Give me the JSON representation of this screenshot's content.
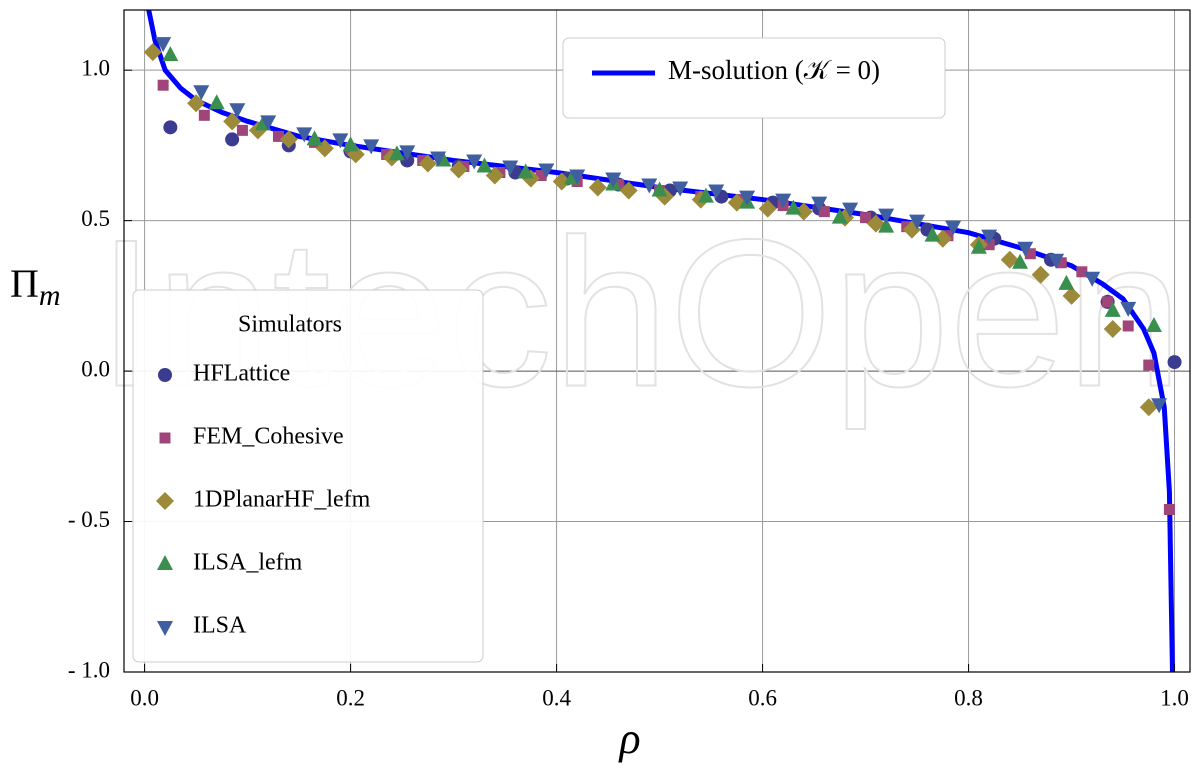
{
  "chart_data": {
    "type": "scatter",
    "watermark": "IntechOpen",
    "x_label": "ρ",
    "y_label": {
      "symbol": "Π",
      "subscript": "m"
    },
    "legend_title": "Simulators",
    "xlim": [
      -0.02,
      1.015
    ],
    "ylim": [
      -1.0,
      1.2
    ],
    "xticks": [
      {
        "value": 0,
        "label": "0.0"
      },
      0.2,
      0.4,
      0.6,
      0.8,
      {
        "value": 1,
        "label": "1.0"
      }
    ],
    "yticks": [
      {
        "value": -1,
        "label": "- 1.0"
      },
      {
        "value": -0.5,
        "label": "- 0.5"
      },
      {
        "value": 0,
        "label": "0.0"
      },
      0.5,
      {
        "value": 1,
        "label": "1.0"
      }
    ],
    "grid": true,
    "series": [
      {
        "name": "M-solution (𝒦 = 0)",
        "style": "line",
        "color": "#0000ff",
        "x": [
          0.004,
          0.01,
          0.02,
          0.035,
          0.05,
          0.075,
          0.1,
          0.15,
          0.2,
          0.3,
          0.4,
          0.5,
          0.6,
          0.7,
          0.8,
          0.85,
          0.9,
          0.93,
          0.95,
          0.97,
          0.98,
          0.99,
          0.995,
          0.998
        ],
        "values": [
          1.2,
          1.1,
          1.0,
          0.94,
          0.9,
          0.86,
          0.83,
          0.78,
          0.75,
          0.7,
          0.66,
          0.61,
          0.57,
          0.52,
          0.46,
          0.41,
          0.35,
          0.29,
          0.24,
          0.14,
          0.06,
          -0.12,
          -0.4,
          -1.0
        ]
      },
      {
        "name": "HFLattice",
        "style": "circle",
        "color": "#3b3b8f",
        "x": [
          0.025,
          0.085,
          0.14,
          0.2,
          0.255,
          0.305,
          0.36,
          0.41,
          0.46,
          0.51,
          0.56,
          0.61,
          0.655,
          0.705,
          0.76,
          0.825,
          0.88,
          0.935,
          1.0
        ],
        "values": [
          0.81,
          0.77,
          0.75,
          0.73,
          0.7,
          0.68,
          0.66,
          0.64,
          0.62,
          0.6,
          0.58,
          0.56,
          0.54,
          0.51,
          0.47,
          0.44,
          0.37,
          0.23,
          0.03
        ]
      },
      {
        "name": "FEM_Cohesive",
        "style": "square",
        "color": "#a0457a",
        "x": [
          0.018,
          0.058,
          0.095,
          0.13,
          0.165,
          0.2,
          0.235,
          0.27,
          0.31,
          0.345,
          0.385,
          0.42,
          0.46,
          0.5,
          0.54,
          0.58,
          0.62,
          0.66,
          0.7,
          0.74,
          0.78,
          0.82,
          0.86,
          0.89,
          0.91,
          0.935,
          0.955,
          0.975,
          0.995
        ],
        "values": [
          0.95,
          0.85,
          0.8,
          0.78,
          0.76,
          0.74,
          0.72,
          0.7,
          0.68,
          0.66,
          0.65,
          0.63,
          0.62,
          0.6,
          0.58,
          0.57,
          0.55,
          0.53,
          0.51,
          0.48,
          0.45,
          0.42,
          0.39,
          0.36,
          0.33,
          0.23,
          0.15,
          0.02,
          -0.46
        ]
      },
      {
        "name": "1DPlanarHF_lefm",
        "style": "diamond",
        "color": "#9c8a3a",
        "x": [
          0.008,
          0.05,
          0.085,
          0.11,
          0.14,
          0.175,
          0.205,
          0.24,
          0.275,
          0.305,
          0.34,
          0.375,
          0.405,
          0.44,
          0.47,
          0.505,
          0.54,
          0.575,
          0.605,
          0.64,
          0.68,
          0.71,
          0.745,
          0.775,
          0.81,
          0.84,
          0.87,
          0.9,
          0.94,
          0.975
        ],
        "values": [
          1.06,
          0.89,
          0.83,
          0.8,
          0.77,
          0.74,
          0.72,
          0.71,
          0.69,
          0.67,
          0.65,
          0.64,
          0.63,
          0.61,
          0.6,
          0.58,
          0.57,
          0.56,
          0.54,
          0.53,
          0.51,
          0.49,
          0.47,
          0.44,
          0.42,
          0.37,
          0.32,
          0.25,
          0.14,
          -0.12
        ]
      },
      {
        "name": "ILSA_lefm",
        "style": "triangle-up",
        "color": "#3a8f4e",
        "x": [
          0.025,
          0.07,
          0.115,
          0.165,
          0.2,
          0.245,
          0.29,
          0.33,
          0.37,
          0.415,
          0.455,
          0.5,
          0.545,
          0.585,
          0.63,
          0.675,
          0.72,
          0.765,
          0.81,
          0.85,
          0.895,
          0.94,
          0.98
        ],
        "values": [
          1.05,
          0.89,
          0.82,
          0.77,
          0.75,
          0.72,
          0.7,
          0.68,
          0.66,
          0.64,
          0.62,
          0.6,
          0.58,
          0.56,
          0.54,
          0.51,
          0.48,
          0.45,
          0.41,
          0.36,
          0.29,
          0.2,
          0.15
        ]
      },
      {
        "name": "ILSA",
        "style": "triangle-down",
        "color": "#3f5fa0",
        "x": [
          0.018,
          0.055,
          0.09,
          0.12,
          0.155,
          0.19,
          0.22,
          0.255,
          0.285,
          0.32,
          0.355,
          0.39,
          0.42,
          0.455,
          0.49,
          0.52,
          0.555,
          0.585,
          0.62,
          0.655,
          0.685,
          0.72,
          0.75,
          0.785,
          0.82,
          0.855,
          0.885,
          0.92,
          0.955,
          0.985
        ],
        "values": [
          1.09,
          0.93,
          0.87,
          0.83,
          0.79,
          0.77,
          0.75,
          0.73,
          0.71,
          0.7,
          0.68,
          0.67,
          0.65,
          0.64,
          0.62,
          0.61,
          0.6,
          0.58,
          0.57,
          0.56,
          0.54,
          0.52,
          0.5,
          0.48,
          0.45,
          0.41,
          0.37,
          0.31,
          0.21,
          -0.11
        ]
      }
    ]
  }
}
